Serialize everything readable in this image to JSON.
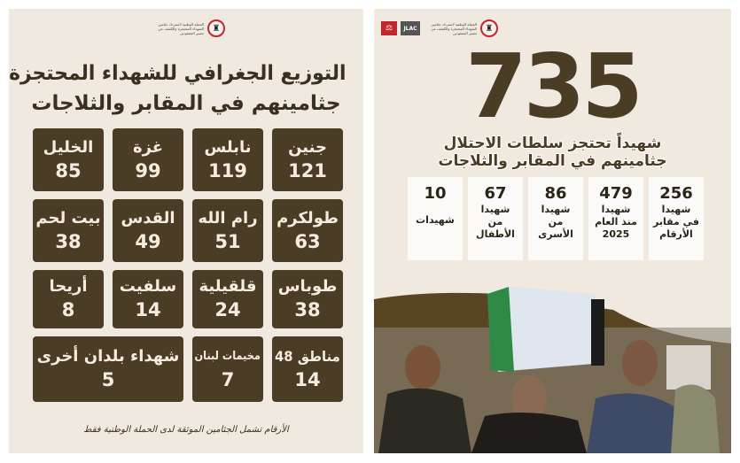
{
  "left": {
    "logo_text": "الحملة الوطنية لاسترداد جثامين الشهداء المحتجزة والكشف عن مصير المفقودين",
    "title_line1": "التوزيع الجغرافي للشهداء المحتجزة",
    "title_line2": "جثامينهم في المقابر والثلاجات",
    "cells": [
      {
        "name": "جنين",
        "value": "121"
      },
      {
        "name": "نابلس",
        "value": "119"
      },
      {
        "name": "غزة",
        "value": "99"
      },
      {
        "name": "الخليل",
        "value": "85"
      },
      {
        "name": "طولكرم",
        "value": "63"
      },
      {
        "name": "رام الله",
        "value": "51"
      },
      {
        "name": "القدس",
        "value": "49"
      },
      {
        "name": "بيت لحم",
        "value": "38"
      },
      {
        "name": "طوباس",
        "value": "38"
      },
      {
        "name": "قلقيلية",
        "value": "24"
      },
      {
        "name": "سلفيت",
        "value": "14"
      },
      {
        "name": "أريحا",
        "value": "8"
      },
      {
        "name": "مناطق 48",
        "value": "14"
      },
      {
        "name": "مخيمات لبنان",
        "value": "7"
      },
      {
        "name": "شهداء بلدان أخرى",
        "value": "5"
      }
    ],
    "footnote": "الأرقام تشمل الجثامين الموثقة لدى الحملة الوطنية فقط"
  },
  "right": {
    "logo_text": "الحملة الوطنية لاسترداد جثامين الشهداء المحتجزة والكشف عن مصير المفقودين",
    "jlac_label": "JLAC",
    "total": "735",
    "subtitle_line1": "شهيداً تحتجز سلطات الاحتلال",
    "subtitle_line2": "جثامينهم في المقابر والثلاجات",
    "cards": [
      {
        "value": "256",
        "label": "شهيدا\nفي مقابر\nالأرقام"
      },
      {
        "value": "479",
        "label": "شهيدا\nمنذ العام\n2025"
      },
      {
        "value": "86",
        "label": "شهيدا\nمن\nالأسرى"
      },
      {
        "value": "67",
        "label": "شهيدا\nمن\nالأطفال"
      },
      {
        "value": "10",
        "label": "شهيدات"
      }
    ]
  },
  "colors": {
    "brown": "#4b3c25",
    "background": "#efe9df",
    "accent_red": "#c0282d"
  }
}
